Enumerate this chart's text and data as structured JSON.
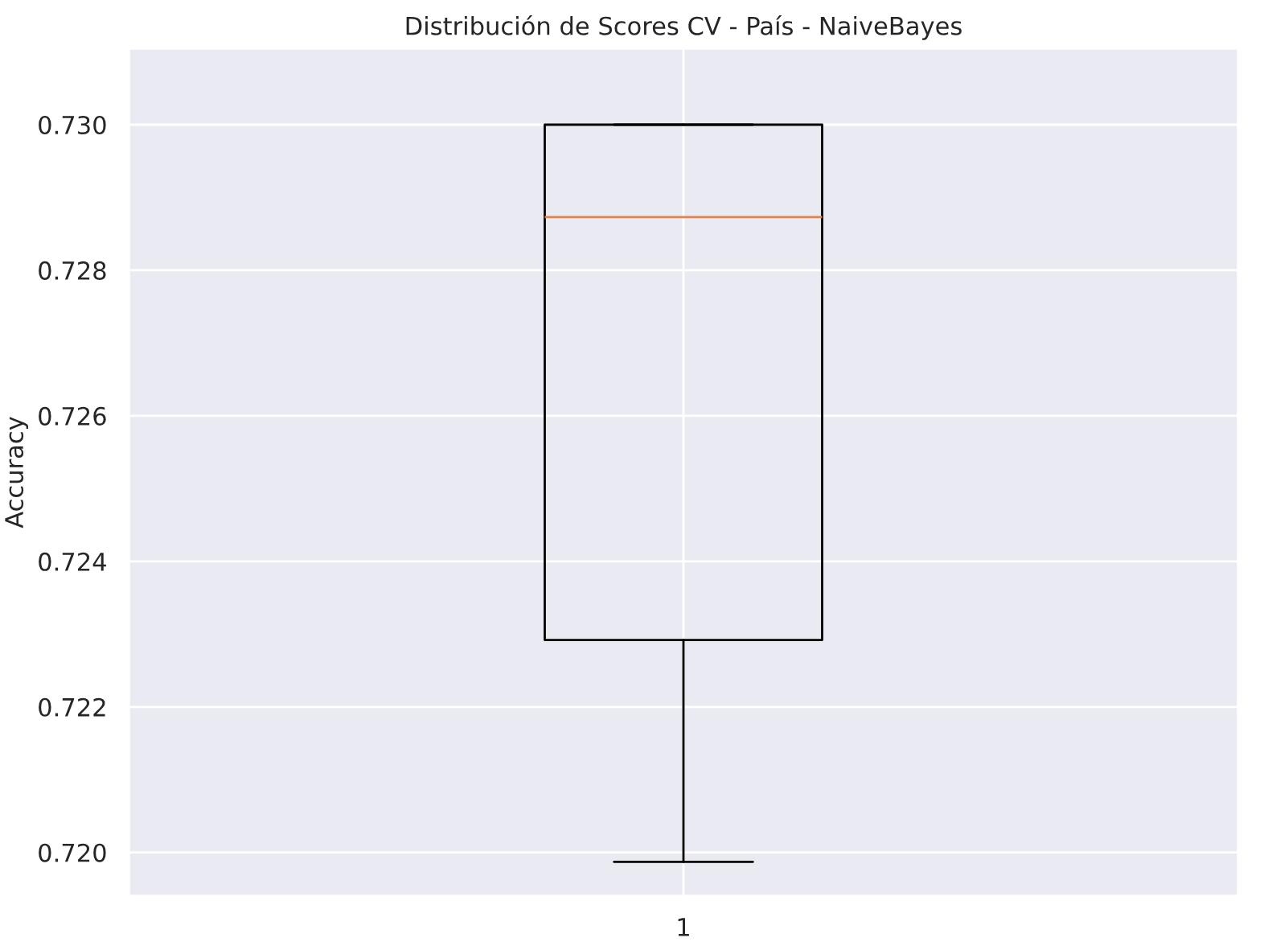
{
  "chart_data": {
    "type": "box",
    "title": "Distribución de Scores CV - País - NaiveBayes",
    "ylabel": "Accuracy",
    "categories": [
      "1"
    ],
    "boxes": [
      {
        "low": 0.71987,
        "q1": 0.72292,
        "median": 0.72873,
        "q3": 0.73,
        "high": 0.73
      }
    ],
    "ylim": [
      0.7194,
      0.73105
    ],
    "yticks": [
      {
        "value": 0.72,
        "label": "0.720"
      },
      {
        "value": 0.722,
        "label": "0.722"
      },
      {
        "value": 0.724,
        "label": "0.724"
      },
      {
        "value": 0.726,
        "label": "0.726"
      },
      {
        "value": 0.728,
        "label": "0.728"
      },
      {
        "value": 0.73,
        "label": "0.730"
      }
    ],
    "grid": true,
    "color": "#000000"
  }
}
